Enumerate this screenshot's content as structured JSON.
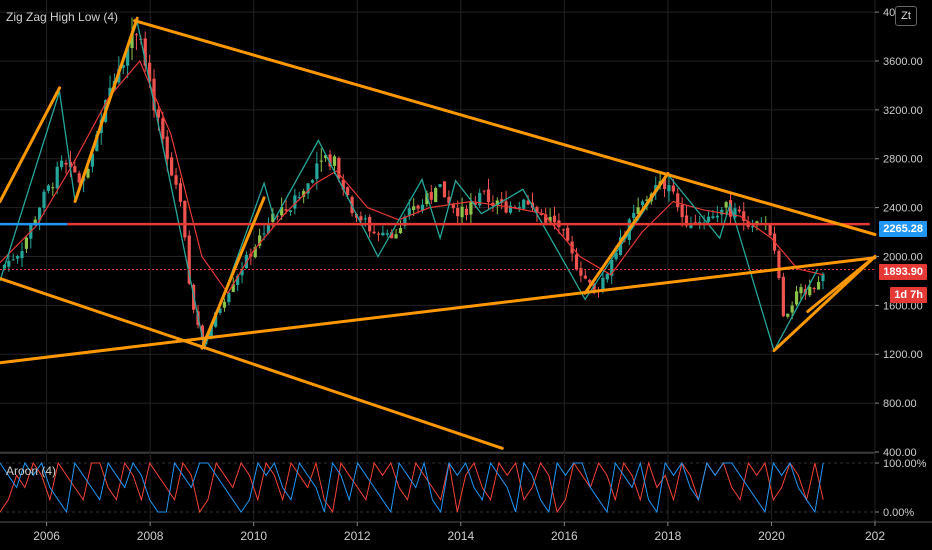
{
  "indicators": {
    "main_title": "Zig Zag High Low (4)",
    "aroon_title": "Aroon (4)",
    "scale_button": "Zt"
  },
  "price_badges": {
    "blue_level": "2265.28",
    "red_level": "1893.90",
    "countdown": "1d 7h"
  },
  "colors": {
    "background": "#000000",
    "grid": "#222222",
    "up_candle": "#26a69a",
    "mixed_candle": "#8bc34a",
    "down_candle": "#ef5350",
    "trendline": "#ff9800",
    "resistance": "#e53935",
    "support_blue": "#2196f3",
    "ma": "#e53935",
    "zigzag": "#26a69a",
    "aroon_up": "#2196f3",
    "aroon_down": "#f44336"
  },
  "chart_data": {
    "type": "candlestick",
    "y_axis_ticks": [
      "400.00",
      "800.00",
      "1200.00",
      "1600.00",
      "2000.00",
      "2400.00",
      "2800.00",
      "3200.00",
      "3600.00",
      "40"
    ],
    "y_range": [
      400,
      4050
    ],
    "x_axis_ticks": [
      "2006",
      "2008",
      "2010",
      "2012",
      "2014",
      "2016",
      "2018",
      "2020",
      "202"
    ],
    "x_range": [
      2005.1,
      2022.0
    ],
    "price_path": [
      [
        2005.1,
        1900
      ],
      [
        2005.5,
        2050
      ],
      [
        2005.9,
        2450
      ],
      [
        2006.3,
        2750
      ],
      [
        2006.7,
        2600
      ],
      [
        2007.0,
        3000
      ],
      [
        2007.3,
        3500
      ],
      [
        2007.6,
        3750
      ],
      [
        2007.8,
        3900
      ],
      [
        2008.0,
        3400
      ],
      [
        2008.3,
        2800
      ],
      [
        2008.6,
        2400
      ],
      [
        2008.8,
        1600
      ],
      [
        2009.05,
        1300
      ],
      [
        2009.3,
        1550
      ],
      [
        2009.6,
        1800
      ],
      [
        2009.9,
        2000
      ],
      [
        2010.3,
        2300
      ],
      [
        2010.7,
        2400
      ],
      [
        2011.0,
        2550
      ],
      [
        2011.3,
        2850
      ],
      [
        2011.6,
        2750
      ],
      [
        2011.9,
        2400
      ],
      [
        2012.3,
        2200
      ],
      [
        2012.7,
        2150
      ],
      [
        2013.0,
        2350
      ],
      [
        2013.3,
        2450
      ],
      [
        2013.6,
        2550
      ],
      [
        2014.0,
        2350
      ],
      [
        2014.4,
        2500
      ],
      [
        2014.8,
        2400
      ],
      [
        2015.2,
        2450
      ],
      [
        2015.5,
        2350
      ],
      [
        2015.9,
        2250
      ],
      [
        2016.2,
        1950
      ],
      [
        2016.6,
        1700
      ],
      [
        2016.9,
        1950
      ],
      [
        2017.3,
        2300
      ],
      [
        2017.7,
        2550
      ],
      [
        2018.0,
        2600
      ],
      [
        2018.3,
        2300
      ],
      [
        2018.7,
        2300
      ],
      [
        2019.1,
        2400
      ],
      [
        2019.5,
        2300
      ],
      [
        2019.9,
        2250
      ],
      [
        2020.1,
        1950
      ],
      [
        2020.25,
        1450
      ],
      [
        2020.5,
        1700
      ],
      [
        2020.8,
        1750
      ],
      [
        2021.0,
        1900
      ]
    ],
    "zigzag": [
      [
        2005.1,
        1800
      ],
      [
        2006.25,
        3350
      ],
      [
        2006.55,
        2450
      ],
      [
        2007.75,
        3920
      ],
      [
        2009.05,
        1250
      ],
      [
        2010.2,
        2600
      ],
      [
        2010.4,
        2300
      ],
      [
        2011.25,
        2950
      ],
      [
        2012.4,
        2000
      ],
      [
        2013.25,
        2630
      ],
      [
        2013.6,
        2150
      ],
      [
        2013.9,
        2620
      ],
      [
        2014.4,
        2350
      ],
      [
        2015.2,
        2550
      ],
      [
        2016.4,
        1650
      ],
      [
        2018.0,
        2670
      ],
      [
        2019.0,
        2150
      ],
      [
        2019.2,
        2430
      ],
      [
        2020.05,
        1230
      ],
      [
        2020.9,
        1900
      ]
    ],
    "moving_average": [
      [
        2005.1,
        1950
      ],
      [
        2005.8,
        2250
      ],
      [
        2006.5,
        2750
      ],
      [
        2007.2,
        3300
      ],
      [
        2007.8,
        3600
      ],
      [
        2008.4,
        3000
      ],
      [
        2009.0,
        2000
      ],
      [
        2009.5,
        1700
      ],
      [
        2010.0,
        2050
      ],
      [
        2010.6,
        2350
      ],
      [
        2011.2,
        2600
      ],
      [
        2011.6,
        2700
      ],
      [
        2012.2,
        2400
      ],
      [
        2012.8,
        2300
      ],
      [
        2013.4,
        2400
      ],
      [
        2014.2,
        2450
      ],
      [
        2015.0,
        2400
      ],
      [
        2015.6,
        2350
      ],
      [
        2016.3,
        2000
      ],
      [
        2016.9,
        1850
      ],
      [
        2017.5,
        2200
      ],
      [
        2018.1,
        2450
      ],
      [
        2018.7,
        2380
      ],
      [
        2019.4,
        2330
      ],
      [
        2020.0,
        2150
      ],
      [
        2020.5,
        1900
      ],
      [
        2021.0,
        1850
      ]
    ],
    "trendlines": [
      {
        "from": [
          2005.1,
          2450
        ],
        "to": [
          2006.25,
          3380
        ]
      },
      {
        "from": [
          2006.55,
          2450
        ],
        "to": [
          2007.75,
          3950
        ]
      },
      {
        "from": [
          2007.7,
          3930
        ],
        "to": [
          2022.0,
          2180
        ]
      },
      {
        "from": [
          2005.1,
          1130
        ],
        "to": [
          2022.0,
          1990
        ]
      },
      {
        "from": [
          2005.1,
          1820
        ],
        "to": [
          2014.8,
          430
        ]
      },
      {
        "from": [
          2009.0,
          1250
        ],
        "to": [
          2010.2,
          2480
        ]
      },
      {
        "from": [
          2016.4,
          1700
        ],
        "to": [
          2018.0,
          2680
        ]
      },
      {
        "from": [
          2020.05,
          1230
        ],
        "to": [
          2022.0,
          2000
        ]
      },
      {
        "from": [
          2020.7,
          1550
        ],
        "to": [
          2022.0,
          2000
        ]
      }
    ],
    "horizontal_levels": [
      {
        "value": 2265.28,
        "color": "#e53935",
        "x_from": 2006.4,
        "x_to": 2021.9
      },
      {
        "value": 2265.28,
        "color": "#2196f3",
        "x_from": 2005.1,
        "x_to": 2006.4
      },
      {
        "value": 1893.9,
        "color": "#e53935",
        "dotted": true,
        "x_from": 2005.1,
        "x_to": 2022.0
      }
    ],
    "aroon": {
      "y_ticks": [
        "100.00%",
        "0.00%"
      ],
      "up": [
        100,
        75,
        50,
        100,
        75,
        100,
        50,
        25,
        0,
        100,
        75,
        50,
        25,
        100,
        75,
        50,
        100,
        75,
        25,
        0,
        0,
        100,
        75,
        50,
        100,
        100,
        75,
        50,
        25,
        0,
        25,
        100,
        75,
        100,
        50,
        25,
        100,
        75,
        50,
        0,
        100,
        75,
        25,
        100,
        75,
        50,
        25,
        0,
        100,
        75,
        50,
        100,
        25,
        0,
        100,
        75,
        100,
        50,
        25,
        100,
        75,
        50,
        0,
        100,
        75,
        25,
        0,
        100,
        75,
        100,
        100,
        50,
        25,
        0,
        100,
        75,
        50,
        100,
        25,
        0,
        100,
        75,
        100,
        50,
        25,
        100,
        75,
        100,
        100,
        75,
        50,
        25,
        0,
        100,
        75,
        100,
        50,
        25,
        0,
        100
      ],
      "down": [
        0,
        25,
        75,
        50,
        100,
        75,
        25,
        100,
        75,
        50,
        25,
        100,
        100,
        50,
        25,
        100,
        75,
        25,
        100,
        75,
        50,
        25,
        100,
        75,
        0,
        25,
        100,
        75,
        50,
        100,
        75,
        25,
        100,
        75,
        25,
        100,
        75,
        50,
        100,
        25,
        0,
        100,
        75,
        50,
        25,
        100,
        75,
        100,
        50,
        25,
        100,
        75,
        50,
        25,
        100,
        0,
        75,
        100,
        50,
        25,
        100,
        75,
        100,
        25,
        50,
        100,
        75,
        0,
        25,
        100,
        75,
        50,
        100,
        75,
        25,
        100,
        75,
        25,
        100,
        50,
        75,
        25,
        100,
        75,
        25,
        100,
        75,
        100,
        50,
        25,
        100,
        75,
        100,
        25,
        50,
        100,
        75,
        25,
        100,
        25
      ]
    },
    "last_price": 1893.9,
    "grid": true,
    "legend_position": "top-left"
  }
}
